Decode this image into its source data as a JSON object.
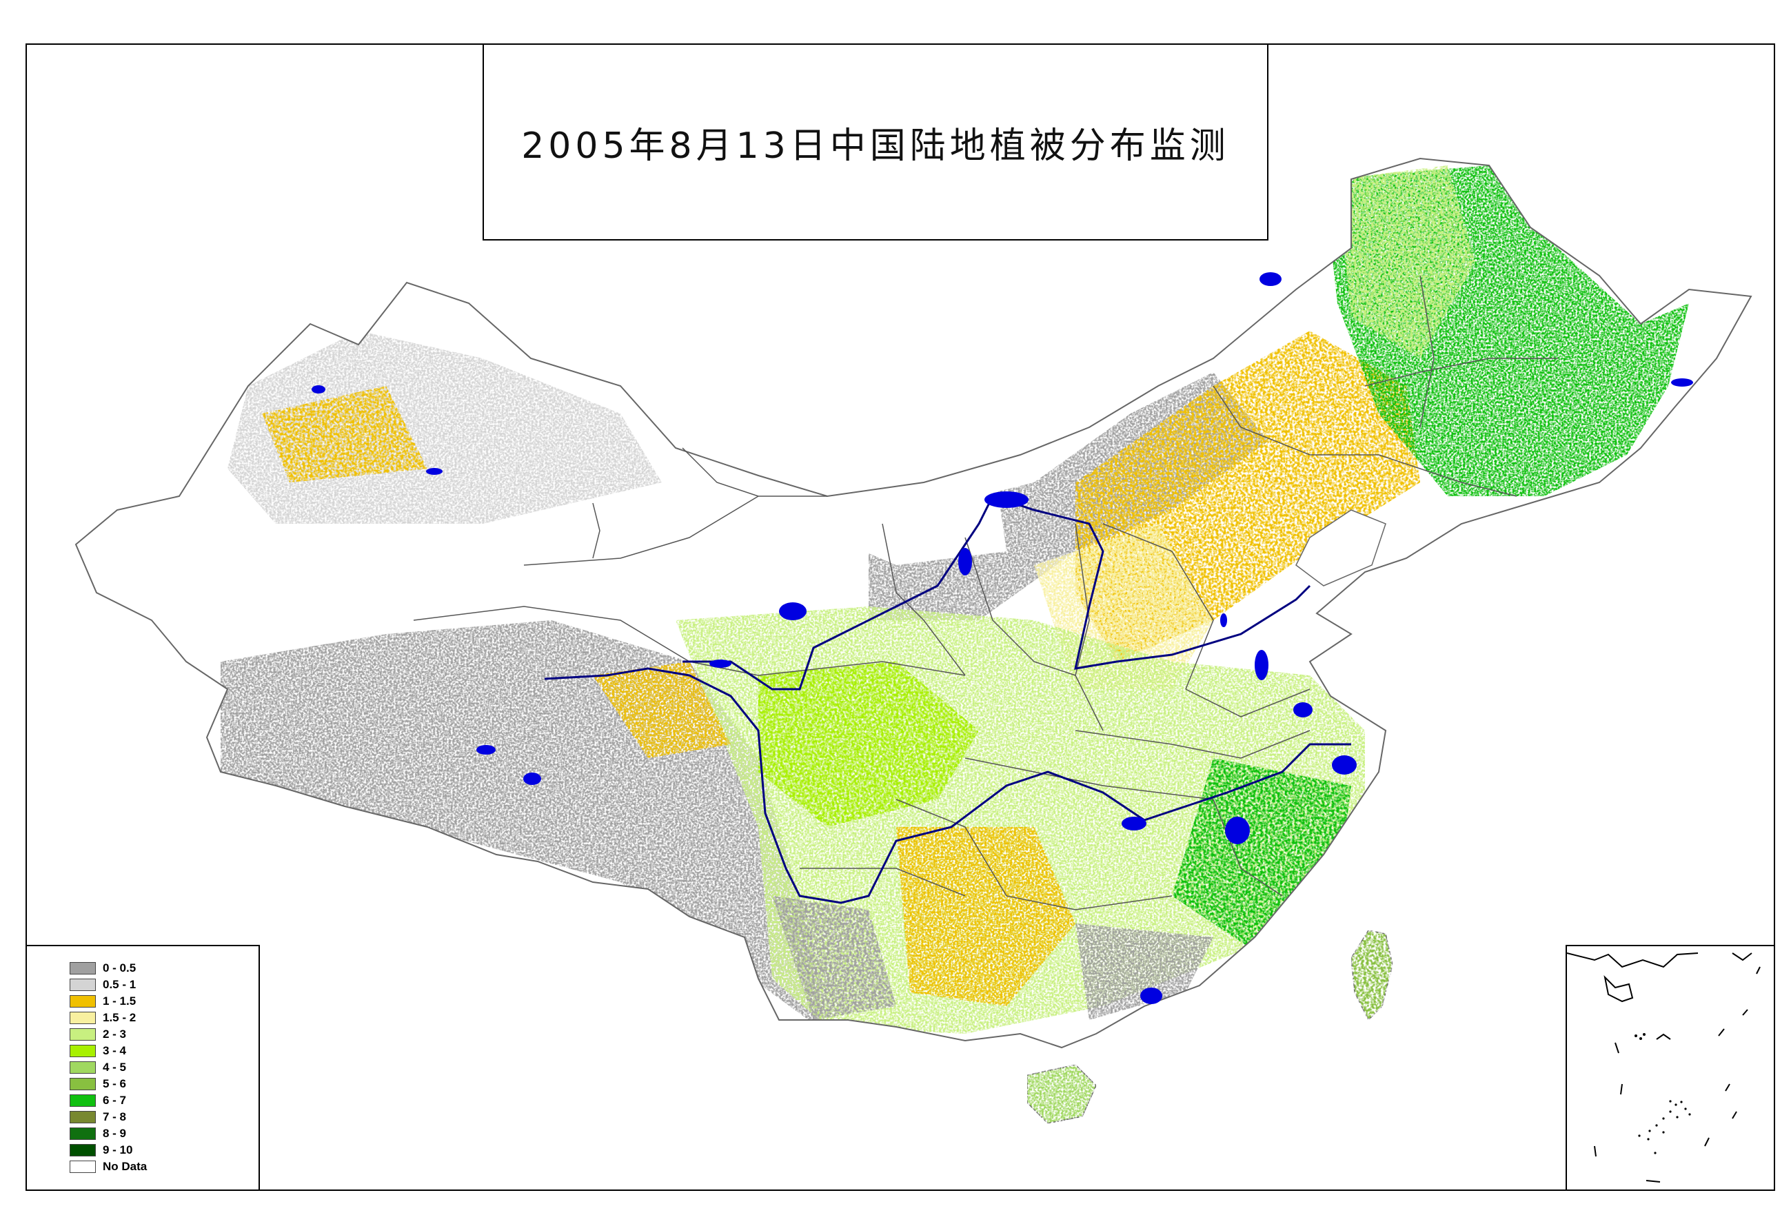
{
  "title": "2005年8月13日中国陆地植被分布监测",
  "legend": {
    "items": [
      {
        "label": "0 - 0.5",
        "color": "#a0a0a0"
      },
      {
        "label": "0.5 - 1",
        "color": "#d4d4d4"
      },
      {
        "label": "1 - 1.5",
        "color": "#f0c000"
      },
      {
        "label": "1.5 - 2",
        "color": "#f8f0a0"
      },
      {
        "label": "2 - 3",
        "color": "#c8f080"
      },
      {
        "label": "3 - 4",
        "color": "#a8f000"
      },
      {
        "label": "4 - 5",
        "color": "#a0d860"
      },
      {
        "label": "5 - 6",
        "color": "#88c040"
      },
      {
        "label": "6 - 7",
        "color": "#10c010"
      },
      {
        "label": "7 - 8",
        "color": "#788830"
      },
      {
        "label": "8 - 9",
        "color": "#107010"
      },
      {
        "label": "9 - 10",
        "color": "#005000"
      },
      {
        "label": "No Data",
        "color": "#ffffff"
      }
    ]
  },
  "colors": {
    "water": "#0000e0",
    "river": "#000080",
    "boundary": "#555555"
  }
}
